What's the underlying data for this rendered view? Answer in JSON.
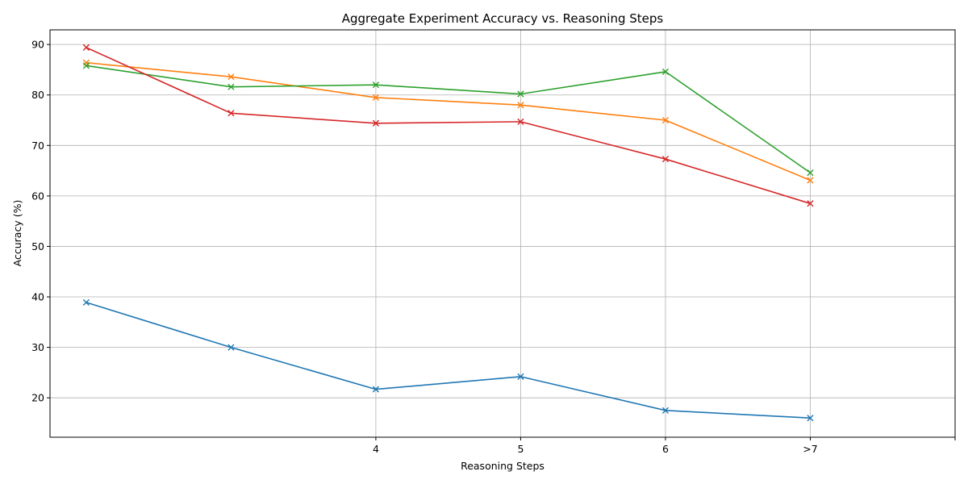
{
  "chart_data": {
    "type": "line",
    "title": "Aggregate Experiment Accuracy vs. Reasoning Steps",
    "xlabel": "Reasoning Steps",
    "ylabel": "Accuracy (%)",
    "x": [
      1,
      2,
      3,
      4,
      5,
      6
    ],
    "x_tick_positions": [
      3,
      4,
      5,
      6,
      7
    ],
    "x_tick_labels": [
      "4",
      "5",
      "6",
      ">7",
      ""
    ],
    "xlim": [
      0.75,
      7
    ],
    "ylim": [
      12.2,
      92.9
    ],
    "y_ticks": [
      20,
      30,
      40,
      50,
      60,
      70,
      80,
      90
    ],
    "grid": true,
    "marker": "x",
    "series": [
      {
        "color": "#1f77b4",
        "values": [
          38.9,
          30.0,
          21.7,
          24.2,
          17.5,
          16.0
        ]
      },
      {
        "color": "#ff7f0e",
        "values": [
          86.4,
          83.6,
          79.5,
          78.0,
          75.0,
          63.1
        ]
      },
      {
        "color": "#2ca02c",
        "values": [
          85.8,
          81.6,
          82.0,
          80.2,
          84.6,
          64.6
        ]
      },
      {
        "color": "#d62728",
        "values": [
          89.4,
          76.4,
          74.4,
          74.7,
          67.3,
          58.5
        ]
      }
    ]
  }
}
